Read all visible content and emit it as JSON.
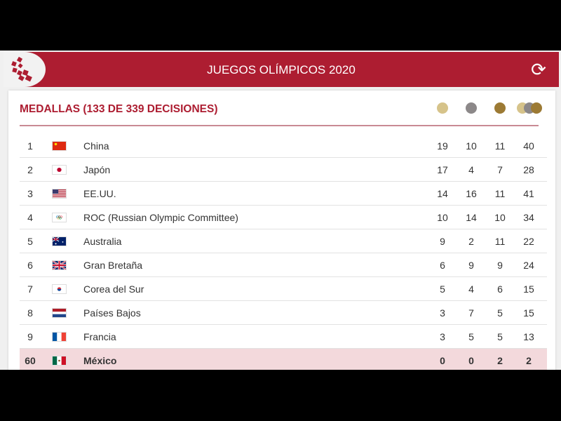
{
  "header": {
    "title": "JUEGOS OLÍMPICOS 2020",
    "refresh_icon": "refresh-icon",
    "logo": "olympics-logo"
  },
  "medals": {
    "heading": "MEDALLAS  (133 DE 339 DECISIONES)",
    "colors": {
      "gold": "#d6c38a",
      "silver": "#8c8889",
      "bronze": "#9c7a34",
      "accent": "#ad1d31",
      "highlight": "#f3d9dc"
    },
    "rows": [
      {
        "rank": "1",
        "country": "China",
        "flag": "china",
        "gold": "19",
        "silver": "10",
        "bronze": "11",
        "total": "40"
      },
      {
        "rank": "2",
        "country": "Japón",
        "flag": "japan",
        "gold": "17",
        "silver": "4",
        "bronze": "7",
        "total": "28"
      },
      {
        "rank": "3",
        "country": "EE.UU.",
        "flag": "usa",
        "gold": "14",
        "silver": "16",
        "bronze": "11",
        "total": "41"
      },
      {
        "rank": "4",
        "country": "ROC (Russian Olympic Committee)",
        "flag": "roc",
        "gold": "10",
        "silver": "14",
        "bronze": "10",
        "total": "34"
      },
      {
        "rank": "5",
        "country": "Australia",
        "flag": "australia",
        "gold": "9",
        "silver": "2",
        "bronze": "11",
        "total": "22"
      },
      {
        "rank": "6",
        "country": "Gran Bretaña",
        "flag": "uk",
        "gold": "6",
        "silver": "9",
        "bronze": "9",
        "total": "24"
      },
      {
        "rank": "7",
        "country": "Corea del Sur",
        "flag": "south-korea",
        "gold": "5",
        "silver": "4",
        "bronze": "6",
        "total": "15"
      },
      {
        "rank": "8",
        "country": "Países Bajos",
        "flag": "netherlands",
        "gold": "3",
        "silver": "7",
        "bronze": "5",
        "total": "15"
      },
      {
        "rank": "9",
        "country": "Francia",
        "flag": "france",
        "gold": "3",
        "silver": "5",
        "bronze": "5",
        "total": "13"
      },
      {
        "rank": "60",
        "country": "México",
        "flag": "mexico",
        "gold": "0",
        "silver": "0",
        "bronze": "2",
        "total": "2",
        "highlighted": true
      }
    ]
  }
}
